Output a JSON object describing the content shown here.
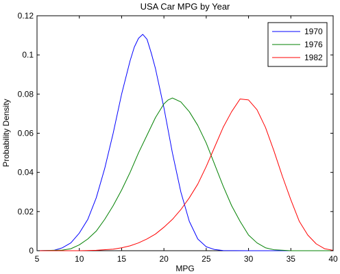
{
  "chart_data": {
    "type": "line",
    "title": "USA Car MPG by Year",
    "xlabel": "MPG",
    "ylabel": "Probability Density",
    "xlim": [
      5,
      40
    ],
    "ylim": [
      0,
      0.12
    ],
    "xticks": [
      5,
      10,
      15,
      20,
      25,
      30,
      35,
      40
    ],
    "xtick_labels": [
      "5",
      "10",
      "15",
      "20",
      "25",
      "30",
      "35",
      "40"
    ],
    "yticks": [
      0,
      0.02,
      0.04,
      0.06,
      0.08,
      0.1,
      0.12
    ],
    "ytick_labels": [
      "0",
      "0.02",
      "0.04",
      "0.06",
      "0.08",
      "0.1",
      "0.12"
    ],
    "grid": false,
    "legend_position": "top-right",
    "series": [
      {
        "name": "1970",
        "color": "#0000ff",
        "x": [
          5,
          7,
          8,
          9,
          10,
          11,
          12,
          13,
          14,
          15,
          16,
          16.5,
          17,
          17.5,
          18,
          18.5,
          19,
          19.5,
          20,
          21,
          22,
          23,
          24,
          25,
          26,
          27,
          30,
          35,
          40
        ],
        "y": [
          0,
          0.0002,
          0.0015,
          0.004,
          0.009,
          0.016,
          0.027,
          0.042,
          0.06,
          0.08,
          0.097,
          0.104,
          0.1085,
          0.1105,
          0.108,
          0.101,
          0.093,
          0.083,
          0.073,
          0.05,
          0.03,
          0.015,
          0.006,
          0.002,
          0.0006,
          0.0001,
          0,
          0,
          0
        ]
      },
      {
        "name": "1976",
        "color": "#008000",
        "x": [
          5,
          8,
          9,
          10,
          11,
          12,
          13,
          14,
          15,
          16,
          17,
          18,
          19,
          20,
          20.5,
          21,
          22,
          23,
          24,
          25,
          26,
          27,
          28,
          29,
          30,
          31,
          32,
          33,
          35,
          40
        ],
        "y": [
          0,
          0.0003,
          0.001,
          0.003,
          0.006,
          0.01,
          0.016,
          0.023,
          0.031,
          0.04,
          0.05,
          0.059,
          0.068,
          0.075,
          0.077,
          0.078,
          0.076,
          0.071,
          0.064,
          0.055,
          0.044,
          0.033,
          0.023,
          0.015,
          0.008,
          0.004,
          0.0015,
          0.0005,
          0,
          0
        ]
      },
      {
        "name": "1982",
        "color": "#ff0000",
        "x": [
          5,
          10,
          12,
          14,
          15,
          16,
          17,
          18,
          19,
          20,
          21,
          22,
          23,
          24,
          25,
          26,
          27,
          28,
          29,
          30,
          31,
          32,
          33,
          34,
          35,
          36,
          37,
          38,
          39,
          40
        ],
        "y": [
          0,
          0,
          0.0002,
          0.0008,
          0.0015,
          0.0025,
          0.004,
          0.006,
          0.0085,
          0.012,
          0.016,
          0.021,
          0.027,
          0.034,
          0.043,
          0.053,
          0.063,
          0.071,
          0.0775,
          0.077,
          0.072,
          0.063,
          0.051,
          0.038,
          0.026,
          0.015,
          0.008,
          0.0035,
          0.001,
          0.0002
        ]
      }
    ]
  }
}
